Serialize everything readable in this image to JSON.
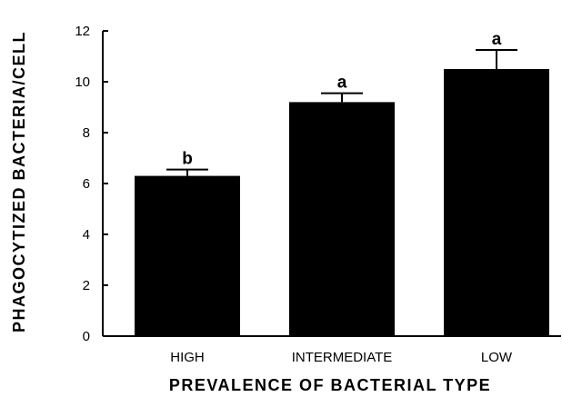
{
  "chart_data": {
    "type": "bar",
    "categories": [
      "HIGH",
      "INTERMEDIATE",
      "LOW"
    ],
    "values": [
      6.3,
      9.2,
      10.5
    ],
    "errors": [
      0.25,
      0.35,
      0.75
    ],
    "annotations": [
      "b",
      "a",
      "a"
    ],
    "xlabel": "PREVALENCE OF BACTERIAL TYPE",
    "ylabel": "PHAGOCYTIZED BACTERIA/CELL",
    "ylim": [
      0,
      12
    ],
    "yticks": [
      0,
      2,
      4,
      6,
      8,
      10,
      12
    ],
    "grid": false,
    "bar_color": "#000000"
  }
}
